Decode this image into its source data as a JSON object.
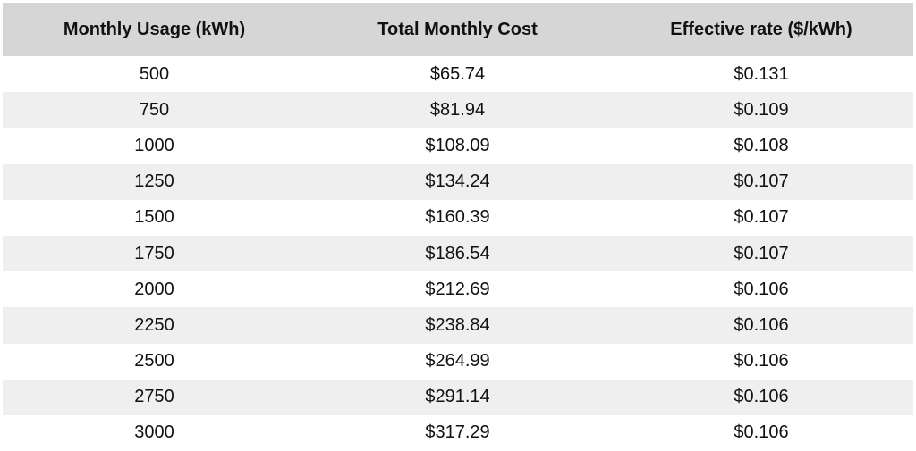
{
  "chart_data": {
    "type": "table",
    "columns": [
      "Monthly Usage (kWh)",
      "Total Monthly Cost",
      "Effective rate ($/kWh)"
    ],
    "rows": [
      [
        "500",
        "$65.74",
        "$0.131"
      ],
      [
        "750",
        "$81.94",
        "$0.109"
      ],
      [
        "1000",
        "$108.09",
        "$0.108"
      ],
      [
        "1250",
        "$134.24",
        "$0.107"
      ],
      [
        "1500",
        "$160.39",
        "$0.107"
      ],
      [
        "1750",
        "$186.54",
        "$0.107"
      ],
      [
        "2000",
        "$212.69",
        "$0.106"
      ],
      [
        "2250",
        "$238.84",
        "$0.106"
      ],
      [
        "2500",
        "$264.99",
        "$0.106"
      ],
      [
        "2750",
        "$291.14",
        "$0.106"
      ],
      [
        "3000",
        "$317.29",
        "$0.106"
      ]
    ],
    "header_background": "#d6d6d6",
    "stripe_background": "#efefef"
  }
}
